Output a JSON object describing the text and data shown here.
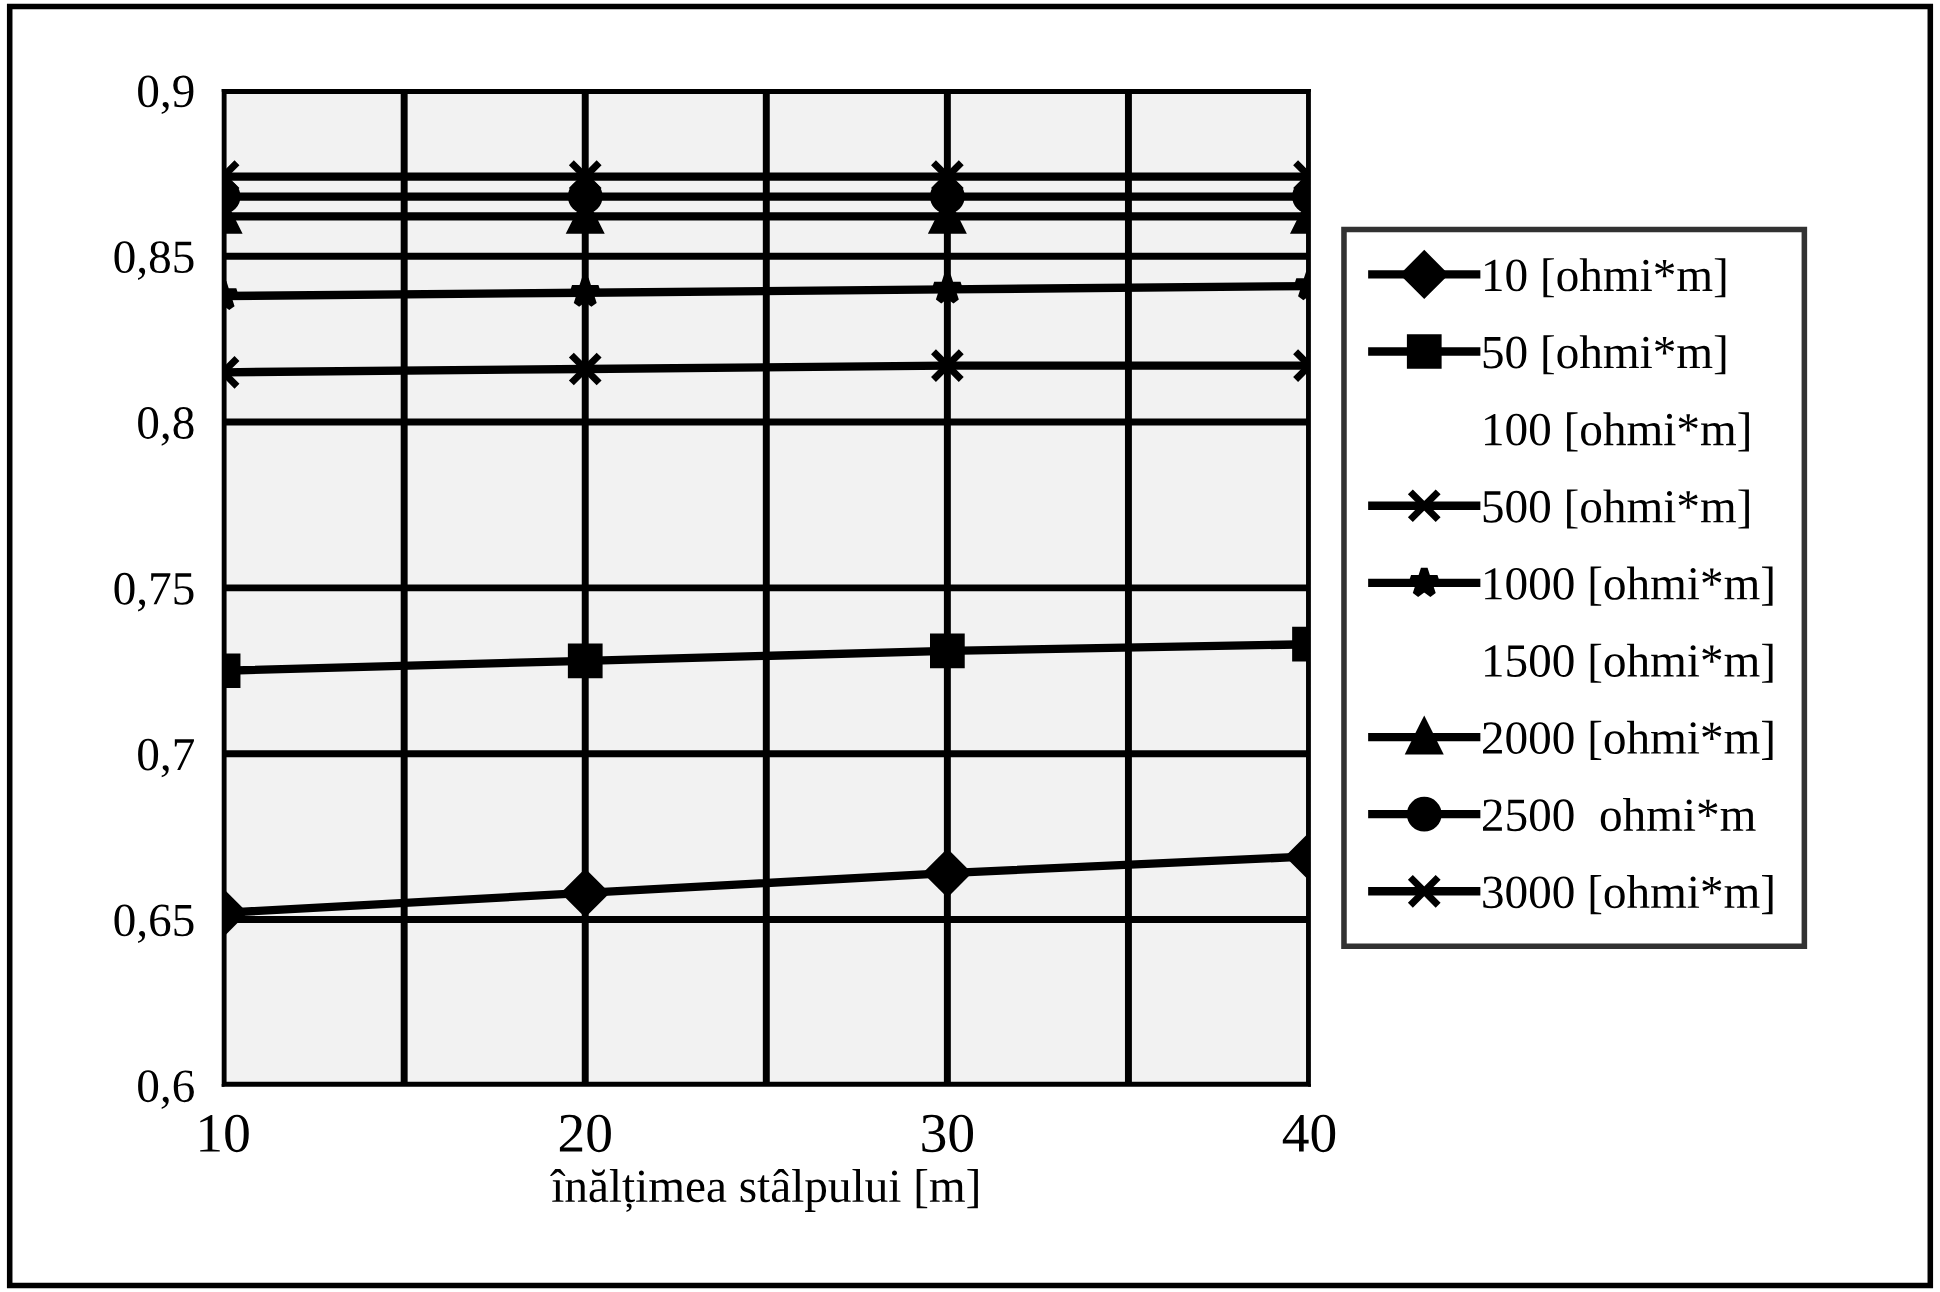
{
  "chart_data": {
    "type": "line",
    "xlabel": "înălțimea stâlpului [m]",
    "x": [
      10,
      20,
      30,
      40
    ],
    "xlim": [
      10,
      40
    ],
    "xticks": [
      10,
      {
        "value": 15,
        "label": null
      },
      20,
      {
        "value": 25,
        "label": null
      },
      30,
      {
        "value": 35,
        "label": null
      },
      40
    ],
    "ylim": [
      0.6,
      0.9
    ],
    "yticks": [
      {
        "value": 0.6,
        "label": "0,6"
      },
      {
        "value": 0.65,
        "label": "0,65"
      },
      {
        "value": 0.7,
        "label": "0,7"
      },
      {
        "value": 0.75,
        "label": "0,75"
      },
      {
        "value": 0.8,
        "label": "0,8"
      },
      {
        "value": 0.85,
        "label": "0,85"
      },
      {
        "value": 0.9,
        "label": "0,9"
      }
    ],
    "grid": true,
    "legend": "right",
    "series": [
      {
        "name": "10 [ohmi*m]",
        "color": "#000000",
        "marker": "diamond",
        "values": [
          0.652,
          0.658,
          0.664,
          0.669
        ]
      },
      {
        "name": "50 [ohmi*m]",
        "color": "#000000",
        "marker": "square",
        "values": [
          0.725,
          0.728,
          0.731,
          0.733
        ]
      },
      {
        "name": "100 [ohmi*m]",
        "marker": "none",
        "values": [
          null,
          null,
          null,
          null
        ]
      },
      {
        "name": "500 [ohmi*m]",
        "color": "#000000",
        "marker": "cross",
        "values": [
          0.815,
          0.816,
          0.817,
          0.817
        ]
      },
      {
        "name": "1000 [ohmi*m]",
        "color": "#000000",
        "marker": "star",
        "values": [
          0.838,
          0.839,
          0.84,
          0.841
        ]
      },
      {
        "name": "1500 [ohmi*m]",
        "marker": "none",
        "values": [
          null,
          null,
          null,
          null
        ]
      },
      {
        "name": "2000 [ohmi*m]",
        "color": "#000000",
        "marker": "triangle",
        "values": [
          0.862,
          0.862,
          0.862,
          0.862
        ]
      },
      {
        "name": "2500  ohmi*m",
        "color": "#000000",
        "marker": "circle",
        "values": [
          0.868,
          0.868,
          0.868,
          0.868
        ]
      },
      {
        "name": "3000 [ohmi*m]",
        "color": "#000000",
        "marker": "cross",
        "values": [
          0.874,
          0.874,
          0.874,
          0.874
        ]
      }
    ]
  }
}
